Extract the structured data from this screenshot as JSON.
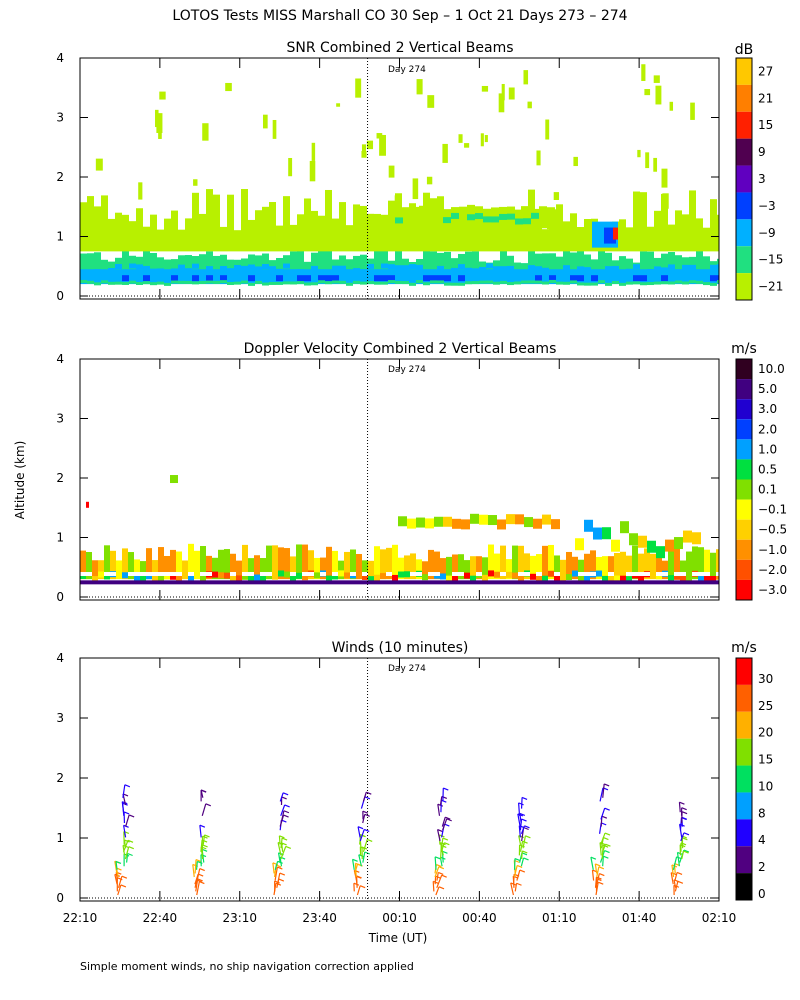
{
  "figure": {
    "title": "LOTOS Tests MISS Marshall CO  30 Sep –  1 Oct 21 Days 273 – 274",
    "ylabel": "Altitude (km)",
    "xlabel": "Time (UT)",
    "footnote": "Simple moment winds, no ship navigation correction applied",
    "day_marker_label": "Day 274"
  },
  "chart_data": [
    {
      "type": "heatmap",
      "title": "SNR Combined 2 Vertical Beams",
      "xlabel": "",
      "ylabel": "Altitude (km)",
      "ylim": [
        0,
        4
      ],
      "yticks": [
        "0",
        "1",
        "2",
        "3",
        "4"
      ],
      "day_marker_minutes": 108,
      "colorbar": {
        "unit": "dB",
        "labels": [
          "27",
          "21",
          "15",
          "9",
          "3",
          "−3",
          "−9",
          "−15",
          "−21"
        ],
        "colors": [
          "#ffc800",
          "#ff7f00",
          "#ff2000",
          "#500050",
          "#6000c0",
          "#0040ff",
          "#00b0ff",
          "#20e080",
          "#b8f000"
        ]
      }
    },
    {
      "type": "heatmap",
      "title": "Doppler Velocity Combined 2 Vertical Beams",
      "xlabel": "",
      "ylabel": "Altitude (km)",
      "ylim": [
        0,
        4
      ],
      "yticks": [
        "0",
        "1",
        "2",
        "3",
        "4"
      ],
      "day_marker_minutes": 108,
      "colorbar": {
        "unit": "m/s",
        "labels": [
          "10.0",
          "5.0",
          "3.0",
          "2.0",
          "1.0",
          "0.5",
          "0.1",
          "−0.1",
          "−0.5",
          "−1.0",
          "−2.0",
          "−3.0"
        ],
        "colors": [
          "#300020",
          "#400080",
          "#2000d0",
          "#0040ff",
          "#00a0ff",
          "#00e040",
          "#80e000",
          "#ffff00",
          "#ffd000",
          "#ff9000",
          "#ff5000",
          "#ff0000"
        ]
      }
    },
    {
      "type": "scatter",
      "title": "Winds (10 minutes)",
      "xlabel": "Time (UT)",
      "ylabel": "Altitude (km)",
      "ylim": [
        0,
        4
      ],
      "yticks": [
        "0",
        "1",
        "2",
        "3",
        "4"
      ],
      "day_marker_minutes": 108,
      "xtick_labels": [
        "22:10",
        "22:40",
        "23:10",
        "23:40",
        "00:10",
        "00:40",
        "01:10",
        "01:40",
        "02:10"
      ],
      "xlim_minutes": [
        0,
        240
      ],
      "profile_times_minutes": [
        16,
        45,
        75,
        105,
        135,
        165,
        195,
        225
      ],
      "colorbar": {
        "unit": "m/s",
        "labels": [
          "30",
          "25",
          "20",
          "15",
          "10",
          "8",
          "4",
          "2",
          "0"
        ],
        "colors": [
          "#ff0000",
          "#ff6000",
          "#ffb000",
          "#80e000",
          "#00e060",
          "#00a0ff",
          "#2000ff",
          "#500080",
          "#000000"
        ]
      }
    }
  ]
}
